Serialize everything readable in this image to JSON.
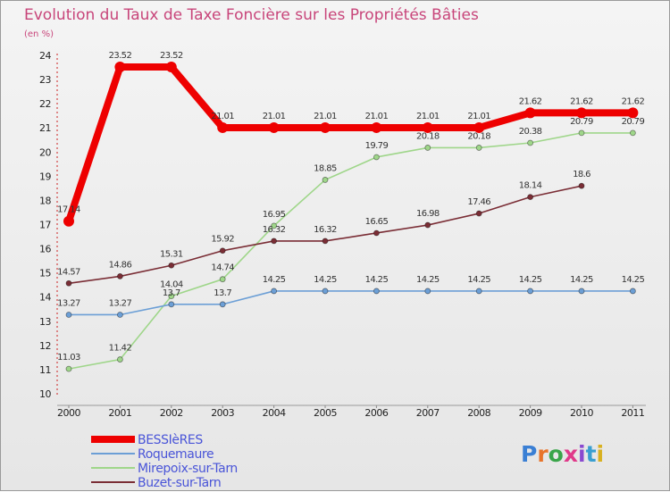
{
  "chart_data": {
    "type": "line",
    "title": "Evolution du Taux de Taxe Foncière sur les Propriétés Bâties",
    "subtitle": "(en %)",
    "x": [
      "2000",
      "2001",
      "2002",
      "2003",
      "2004",
      "2005",
      "2006",
      "2007",
      "2008",
      "2009",
      "2010",
      "2011"
    ],
    "y_ticks": [
      "10",
      "11",
      "12",
      "13",
      "14",
      "15",
      "16",
      "17",
      "18",
      "19",
      "20",
      "21",
      "22",
      "23",
      "24"
    ],
    "ylim": [
      10,
      24
    ],
    "series": [
      {
        "name": "BESSIèRES",
        "color": "#ee0000",
        "values": [
          17.14,
          23.52,
          23.52,
          21.01,
          21.01,
          21.01,
          21.01,
          21.01,
          21.01,
          21.62,
          21.62,
          21.62
        ],
        "labels": [
          "17.14",
          "23.52",
          "23.52",
          "21.01",
          "21.01",
          "21.01",
          "21.01",
          "21.01",
          "21.01",
          "21.62",
          "21.62",
          "21.62"
        ]
      },
      {
        "name": "Roquemaure",
        "color": "#6c9fd6",
        "values": [
          13.27,
          13.27,
          13.7,
          13.7,
          14.25,
          14.25,
          14.25,
          14.25,
          14.25,
          14.25,
          14.25,
          14.25
        ],
        "labels": [
          "13.27",
          "13.27",
          "13.7",
          "13.7",
          "14.25",
          "14.25",
          "14.25",
          "14.25",
          "14.25",
          "14.25",
          "14.25",
          "14.25"
        ]
      },
      {
        "name": "Mirepoix-sur-Tarn",
        "color": "#9fd68a",
        "values": [
          11.03,
          11.42,
          14.04,
          14.74,
          16.95,
          18.85,
          19.79,
          20.18,
          20.18,
          20.38,
          20.79,
          20.79
        ],
        "labels": [
          "11.03",
          "11.42",
          "14.04",
          "14.74",
          "16.95",
          "18.85",
          "19.79",
          "20.18",
          "20.18",
          "20.38",
          "20.79",
          "20.79"
        ]
      },
      {
        "name": "Buzet-sur-Tarn",
        "color": "#7a2d35",
        "values": [
          14.57,
          14.86,
          15.31,
          15.92,
          16.32,
          16.32,
          16.65,
          16.98,
          17.46,
          18.14,
          18.6,
          null
        ],
        "labels": [
          "14.57",
          "14.86",
          "15.31",
          "15.92",
          "16.32",
          "16.32",
          "16.65",
          "16.98",
          "17.46",
          "18.14",
          "18.6",
          null
        ]
      }
    ],
    "legend_position": "bottom-left",
    "grid": false
  },
  "watermark": "Proxiti"
}
